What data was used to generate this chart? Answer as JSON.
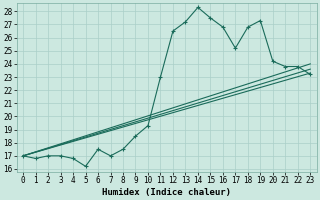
{
  "xlabel": "Humidex (Indice chaleur)",
  "xlim": [
    -0.5,
    23.5
  ],
  "ylim": [
    15.8,
    28.6
  ],
  "yticks": [
    16,
    17,
    18,
    19,
    20,
    21,
    22,
    23,
    24,
    25,
    26,
    27,
    28
  ],
  "xticks": [
    0,
    1,
    2,
    3,
    4,
    5,
    6,
    7,
    8,
    9,
    10,
    11,
    12,
    13,
    14,
    15,
    16,
    17,
    18,
    19,
    20,
    21,
    22,
    23
  ],
  "bg_color": "#cce8e0",
  "grid_color": "#aacfc8",
  "line_color": "#1a6b5a",
  "main_line_x": [
    0,
    1,
    2,
    3,
    4,
    5,
    6,
    7,
    8,
    9,
    10,
    11,
    12,
    13,
    14,
    15,
    16,
    17,
    18,
    19,
    20,
    21,
    22,
    23
  ],
  "main_line_y": [
    17.0,
    16.8,
    17.0,
    17.0,
    16.8,
    16.2,
    17.5,
    17.0,
    17.5,
    18.5,
    19.3,
    23.0,
    26.5,
    27.2,
    28.3,
    27.5,
    26.8,
    25.2,
    26.8,
    27.3,
    24.2,
    23.8,
    23.8,
    23.2
  ],
  "straight_lines": [
    {
      "x": [
        0,
        23
      ],
      "y": [
        17.0,
        24.0
      ]
    },
    {
      "x": [
        0,
        23
      ],
      "y": [
        17.0,
        23.3
      ]
    },
    {
      "x": [
        0,
        23
      ],
      "y": [
        17.0,
        23.6
      ]
    }
  ],
  "figsize": [
    3.2,
    2.0
  ],
  "dpi": 100,
  "tick_labelsize": 5.5,
  "xlabel_fontsize": 6.5,
  "line_width": 0.8,
  "marker_size": 3.5,
  "marker_style": "+"
}
